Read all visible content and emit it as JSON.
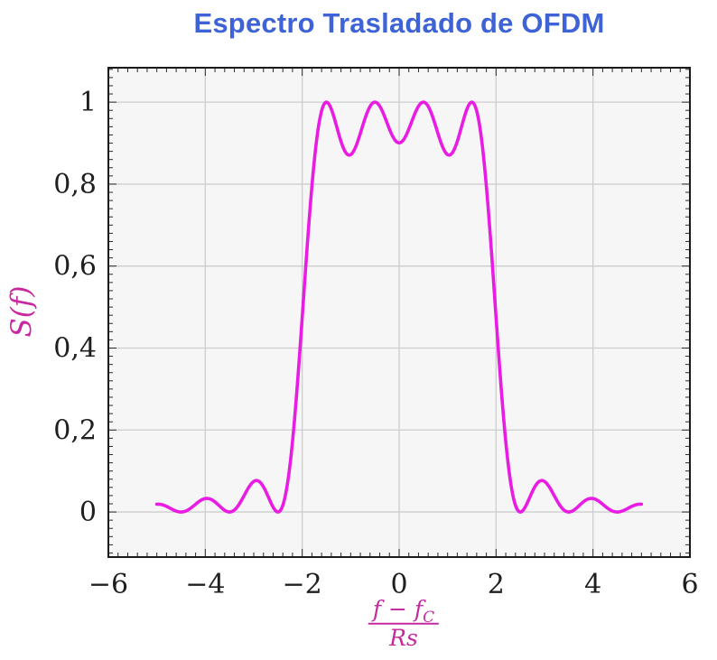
{
  "title": {
    "text": "Espectro Trasladado de OFDM",
    "color": "#3D63D6"
  },
  "axes": {
    "ylabel": "S(f)",
    "ylabel_color": "#C9279F",
    "xlabel": {
      "numerator_base": "f − f",
      "numerator_sub": "C",
      "denominator": "Rs"
    },
    "xlabel_color": "#C42B9E"
  },
  "style": {
    "plot_bg": "#F6F6F6",
    "grid_color": "#CDCDCD",
    "axis_color": "#1A1A1A",
    "tick_color": "#2A2A2A",
    "tick_label_color": "#1F1F1F"
  },
  "chart_data": {
    "type": "line",
    "title": "Espectro Trasladado de OFDM",
    "xlabel": "(f − f_C) / Rs",
    "ylabel": "S(f)",
    "xlim": [
      -6,
      6
    ],
    "ylim": [
      -0.11,
      1.084
    ],
    "grid": true,
    "x_major_ticks": [
      -6,
      -4,
      -2,
      0,
      2,
      4,
      6
    ],
    "x_tick_labels": [
      "−6",
      "−4",
      "−2",
      "0",
      "2",
      "4",
      "6"
    ],
    "y_major_ticks": [
      0,
      0.2,
      0.4,
      0.6,
      0.8,
      1
    ],
    "y_tick_labels": [
      "0",
      "0,2",
      "0,4",
      "0,6",
      "0,8",
      "1"
    ],
    "x_minor_step": 0.2,
    "y_minor_step": 0.02,
    "series": [
      {
        "name": "S(f)",
        "color": "#E91CE3",
        "line_width": 3.6,
        "formula": "S(f) = sum over carriers k of sinc^2(f - k), sinc(x) = sin(pi x)/(pi x)",
        "carriers": [
          -1.5,
          -0.5,
          0.5,
          1.5
        ],
        "x_range": [
          -5,
          5
        ],
        "key_points": [
          [
            -5,
            0.019
          ],
          [
            -4.5,
            0
          ],
          [
            -4,
            0.0328
          ],
          [
            -3.5,
            0
          ],
          [
            -3,
            0.0745
          ],
          [
            -2.5,
            0
          ],
          [
            -2,
            0.4748
          ],
          [
            -1.5,
            1.0
          ],
          [
            -1,
            0.8718
          ],
          [
            -0.5,
            1.0
          ],
          [
            0,
            0.9006
          ],
          [
            0.5,
            1.0
          ],
          [
            1,
            0.8718
          ],
          [
            1.5,
            1.0
          ],
          [
            2,
            0.4748
          ],
          [
            2.5,
            0
          ],
          [
            3,
            0.0745
          ],
          [
            3.5,
            0
          ],
          [
            4,
            0.0328
          ],
          [
            4.5,
            0
          ],
          [
            5,
            0.019
          ]
        ]
      }
    ]
  }
}
